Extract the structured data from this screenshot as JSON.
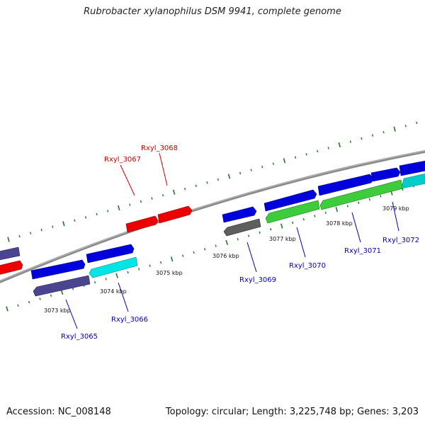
{
  "title": "Rubrobacter xylanophilus DSM 9941, complete genome",
  "accession_label": "Accession: NC_008148",
  "topology_label": "Topology: circular; Length: 3,225,748 bp; Genes: 3,203",
  "colors": {
    "backbone": "#8a8a8a",
    "tick": "#1d7a1d",
    "label_red": "#cc0000",
    "label_blue": "#0000bb"
  },
  "kbp_ticks": [
    "3073 kbp",
    "3074 kbp",
    "3075 kbp",
    "3076 kbp",
    "3077 kbp",
    "3078 kbp",
    "3079 kbp"
  ],
  "genes": [
    {
      "label": "Rxyl_3065",
      "color": "#4b4591",
      "strand": "reverse"
    },
    {
      "label": "Rxyl_3066",
      "color": "#00e5e5",
      "strand": "reverse"
    },
    {
      "label": "Rxyl_3067",
      "color": "#ee0000",
      "strand": "forward"
    },
    {
      "label": "Rxyl_3068",
      "color": "#ee0000",
      "strand": "forward"
    },
    {
      "label": "Rxyl_3069",
      "color": "#5e5e5e",
      "strand": "reverse"
    },
    {
      "label": "Rxyl_3070",
      "color": "#3ccc3c",
      "strand": "reverse"
    },
    {
      "label": "Rxyl_3071",
      "color": "#3ccc3c",
      "strand": "reverse"
    },
    {
      "label": "Rxyl_3072",
      "color": "#00cccc",
      "strand": "reverse"
    }
  ]
}
